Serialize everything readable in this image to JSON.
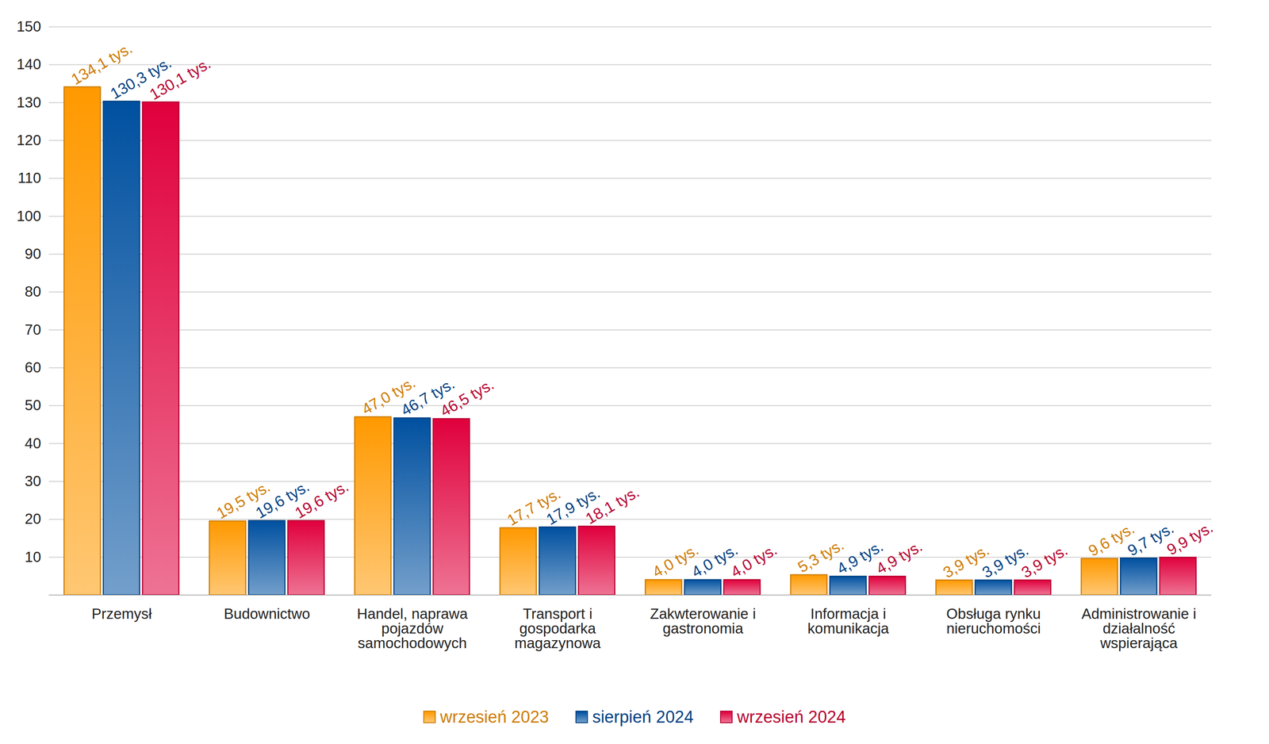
{
  "chart_data": {
    "type": "bar",
    "categories": [
      "Przemysł",
      "Budownictwo",
      "Handel, naprawa pojazdów samochodowych",
      "Transport i gospodarka magazynowa",
      "Zakwterowanie i gastronomia",
      "Informacja i komunikacja",
      "Obsługa rynku nieruchomości",
      "Administrowanie i działalność wspierająca"
    ],
    "series": [
      {
        "name": "wrzesień 2023",
        "color": "#ff9900",
        "values": [
          134.1,
          19.5,
          47.0,
          17.7,
          4.0,
          5.3,
          3.9,
          9.6
        ],
        "value_labels": [
          "134,1 tys.",
          "19,5 tys.",
          "47,0 tys.",
          "17,7 tys.",
          "4,0 tys.",
          "5,3 tys.",
          "3,9 tys.",
          "9,6 tys."
        ]
      },
      {
        "name": "sierpień 2024",
        "color": "#0050a0",
        "values": [
          130.3,
          19.6,
          46.7,
          17.9,
          4.0,
          4.9,
          3.9,
          9.7
        ],
        "value_labels": [
          "130,3 tys.",
          "19,6 tys.",
          "46,7 tys.",
          "17,9 tys.",
          "4,0 tys.",
          "4,9 tys.",
          "3,9 tys.",
          "9,7 tys."
        ]
      },
      {
        "name": "wrzesień 2024",
        "color": "#e0003c",
        "values": [
          130.1,
          19.6,
          46.5,
          18.1,
          4.0,
          4.9,
          3.9,
          9.9
        ],
        "value_labels": [
          "130,1 tys.",
          "19,6 tys.",
          "46,5 tys.",
          "18,1 tys.",
          "4,0 tys.",
          "4,9 tys.",
          "3,9 tys.",
          "9,9 tys."
        ]
      }
    ],
    "ylim": [
      0,
      150
    ],
    "yticks": [
      10,
      20,
      30,
      40,
      50,
      60,
      70,
      80,
      90,
      100,
      110,
      120,
      130,
      140,
      150
    ],
    "grid": true,
    "data_labels": true,
    "legend": "bottom"
  }
}
